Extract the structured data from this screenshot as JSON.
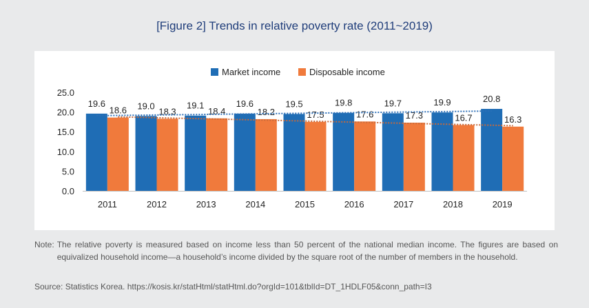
{
  "figure_title": "[Figure 2] Trends in relative poverty rate (2011~2019)",
  "note": {
    "label": "Note:",
    "text": "The relative poverty is measured based on income less than 50 percent of the national median income. The figures are based on equivalized household income—a household’s income divided by the square root of the number of members in the household."
  },
  "source": "Source: Statistics Korea. https://kosis.kr/statHtml/statHtml.do?orgId=101&tblId=DT_1HDLF05&conn_path=I3",
  "chart_data": {
    "type": "bar",
    "title": "",
    "xlabel": "",
    "ylabel": "",
    "categories": [
      "2011",
      "2012",
      "2013",
      "2014",
      "2015",
      "2016",
      "2017",
      "2018",
      "2019"
    ],
    "series": [
      {
        "name": "Market income",
        "color": "#1f6db5",
        "values": [
          19.6,
          19.0,
          19.1,
          19.6,
          19.5,
          19.8,
          19.7,
          19.9,
          20.8
        ],
        "labels": [
          "19.6",
          "19.0",
          "19.1",
          "19.6",
          "19.5",
          "19.8",
          "19.7",
          "19.9",
          "20.8"
        ]
      },
      {
        "name": "Disposable income",
        "color": "#f07a3c",
        "values": [
          18.6,
          18.3,
          18.4,
          18.2,
          17.5,
          17.6,
          17.3,
          16.7,
          16.3
        ],
        "labels": [
          "18.6",
          "18.3",
          "18.4",
          "18.2",
          "17.5",
          "17.6",
          "17.3",
          "16.7",
          "16.3"
        ]
      }
    ],
    "trendlines": "dotted linear trendline per series",
    "ylim": [
      0,
      25
    ],
    "yticks": [
      "0.0",
      "5.0",
      "10.0",
      "15.0",
      "20.0",
      "25.0"
    ],
    "legend_position": "top-center",
    "grid": false
  }
}
